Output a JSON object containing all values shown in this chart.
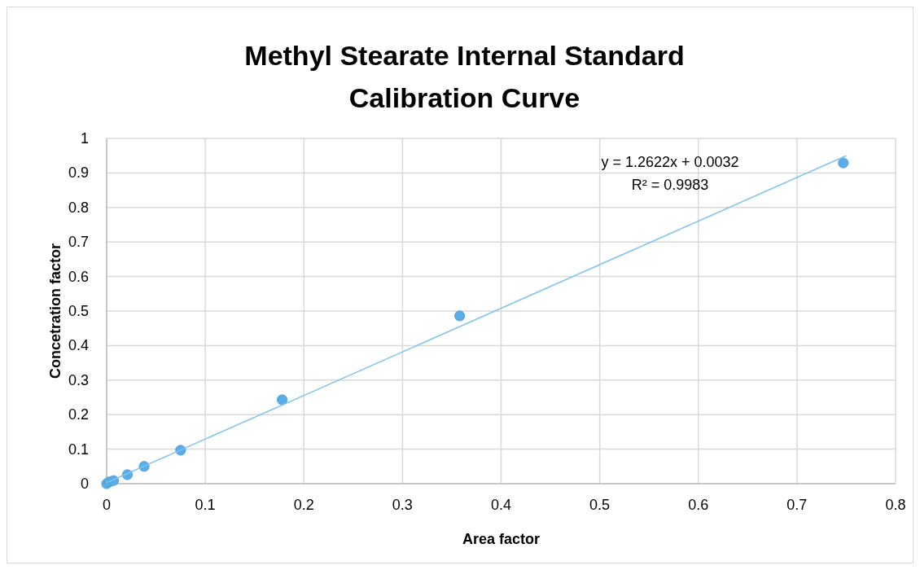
{
  "chart_data": {
    "type": "scatter",
    "title": "Methyl Stearate Internal Standard Calibration Curve",
    "xlabel": "Area factor",
    "ylabel": "Concetration factor",
    "xlim": [
      0,
      0.8
    ],
    "xticks": [
      0,
      0.1,
      0.2,
      0.3,
      0.4,
      0.5,
      0.6,
      0.7,
      0.8
    ],
    "ylim": [
      0,
      1
    ],
    "yticks": [
      0,
      0.1,
      0.2,
      0.3,
      0.4,
      0.5,
      0.6,
      0.7,
      0.8,
      0.9,
      1
    ],
    "grid": true,
    "series": [
      {
        "marker": "circle",
        "color": "#5aade6",
        "x": [
          0,
          0.0025,
          0.007,
          0.021,
          0.038,
          0.075,
          0.178,
          0.358,
          0.747
        ],
        "values": [
          0,
          0.005,
          0.009,
          0.026,
          0.05,
          0.097,
          0.243,
          0.486,
          0.929
        ]
      },
      {
        "type": "line",
        "color": "#7ec4ec",
        "x": [
          0,
          0.75
        ],
        "values": [
          0.003,
          0.95
        ]
      }
    ],
    "annotations": [
      "y = 1.2622x + 0.0032",
      "R² = 0.9983"
    ]
  }
}
